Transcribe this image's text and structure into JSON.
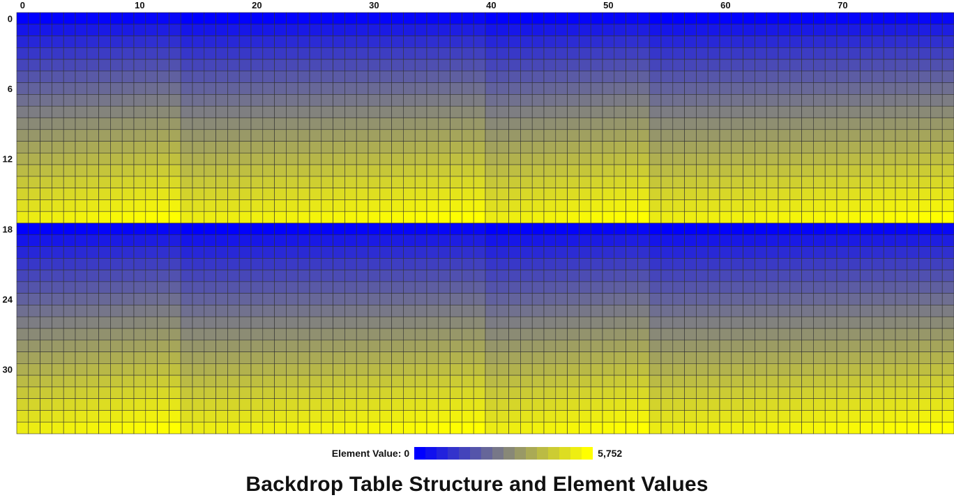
{
  "chart_data": {
    "type": "heatmap",
    "title": "Backdrop Table Structure and Element Values",
    "rows": 36,
    "cols": 80,
    "x_ticks": [
      0,
      10,
      20,
      30,
      40,
      50,
      60,
      70
    ],
    "y_ticks": [
      0,
      6,
      12,
      18,
      24,
      30
    ],
    "value_range": [
      0,
      5752
    ],
    "legend": {
      "label": "Element Value:",
      "min_label": "0",
      "max_label": "5,752",
      "position": "bottom-center"
    },
    "colorscale": {
      "low": "#0000ff",
      "mid": "#808080",
      "high": "#ffff00"
    },
    "grid": true,
    "cell_border_color": "#333333",
    "structure": {
      "period_rows": 18,
      "period_cols": 40,
      "block_widths": [
        14,
        26
      ],
      "description_values": {
        "row_min": 0,
        "row_max": 5752
      }
    }
  }
}
